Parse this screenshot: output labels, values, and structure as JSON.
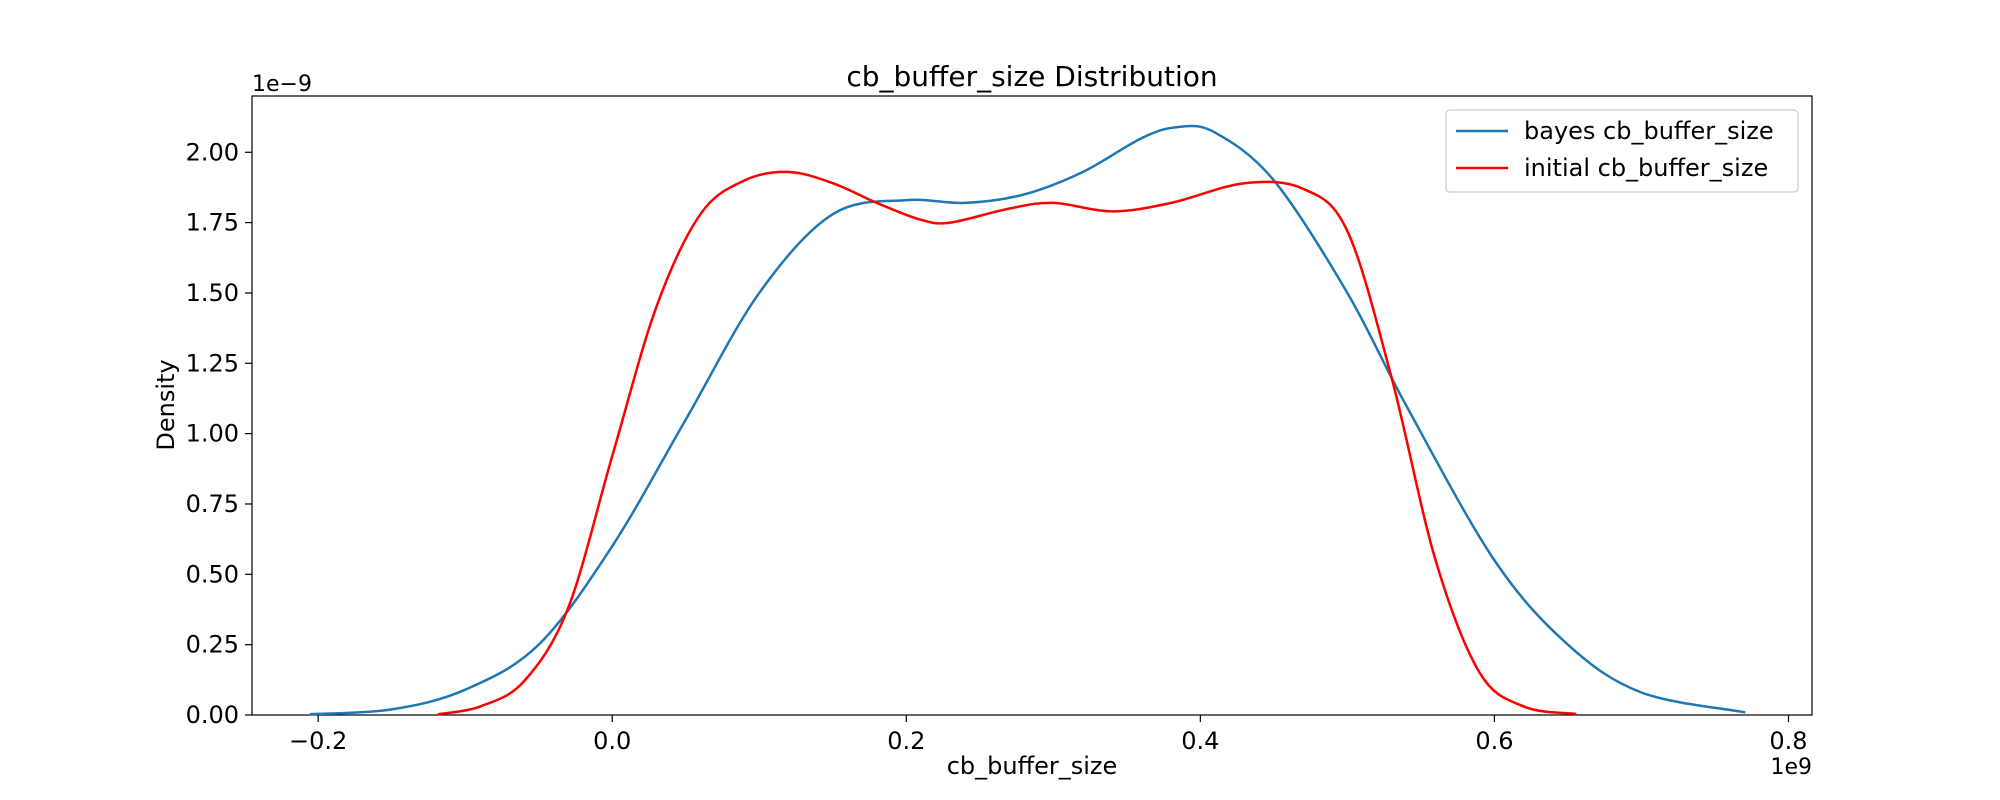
{
  "chart_data": {
    "type": "line",
    "title": "cb_buffer_size Distribution",
    "xlabel": "cb_buffer_size",
    "ylabel": "Density",
    "x_offset_text": "1e9",
    "y_offset_text": "1e−9",
    "xlim": [
      -0.245,
      0.816
    ],
    "ylim": [
      0,
      2.2
    ],
    "xticks": [
      -0.2,
      0.0,
      0.2,
      0.4,
      0.6,
      0.8
    ],
    "xtick_labels": [
      "−0.2",
      "0.0",
      "0.2",
      "0.4",
      "0.6",
      "0.8"
    ],
    "yticks": [
      0,
      0.25,
      0.5,
      0.75,
      1.0,
      1.25,
      1.5,
      1.75,
      2.0
    ],
    "ytick_labels": [
      "0.00",
      "0.25",
      "0.50",
      "0.75",
      "1.00",
      "1.25",
      "1.50",
      "1.75",
      "2.00"
    ],
    "grid": false,
    "legend_position": "top-right",
    "series": [
      {
        "name": "bayes cb_buffer_size",
        "color": "#1f77b4",
        "points": [
          [
            -0.205,
            0.003
          ],
          [
            -0.15,
            0.02
          ],
          [
            -0.1,
            0.09
          ],
          [
            -0.05,
            0.25
          ],
          [
            0.0,
            0.6
          ],
          [
            0.05,
            1.05
          ],
          [
            0.1,
            1.5
          ],
          [
            0.15,
            1.78
          ],
          [
            0.2,
            1.83
          ],
          [
            0.24,
            1.82
          ],
          [
            0.28,
            1.85
          ],
          [
            0.32,
            1.93
          ],
          [
            0.36,
            2.05
          ],
          [
            0.385,
            2.09
          ],
          [
            0.41,
            2.07
          ],
          [
            0.45,
            1.9
          ],
          [
            0.5,
            1.5
          ],
          [
            0.54,
            1.1
          ],
          [
            0.6,
            0.55
          ],
          [
            0.65,
            0.25
          ],
          [
            0.7,
            0.08
          ],
          [
            0.77,
            0.01
          ]
        ]
      },
      {
        "name": "initial cb_buffer_size",
        "color": "#ff0000",
        "points": [
          [
            -0.118,
            0.003
          ],
          [
            -0.09,
            0.03
          ],
          [
            -0.06,
            0.12
          ],
          [
            -0.03,
            0.38
          ],
          [
            0.0,
            0.92
          ],
          [
            0.03,
            1.45
          ],
          [
            0.06,
            1.78
          ],
          [
            0.09,
            1.9
          ],
          [
            0.12,
            1.93
          ],
          [
            0.15,
            1.89
          ],
          [
            0.18,
            1.82
          ],
          [
            0.21,
            1.76
          ],
          [
            0.23,
            1.75
          ],
          [
            0.27,
            1.8
          ],
          [
            0.3,
            1.82
          ],
          [
            0.34,
            1.79
          ],
          [
            0.38,
            1.82
          ],
          [
            0.43,
            1.89
          ],
          [
            0.47,
            1.87
          ],
          [
            0.5,
            1.72
          ],
          [
            0.53,
            1.2
          ],
          [
            0.56,
            0.55
          ],
          [
            0.59,
            0.15
          ],
          [
            0.62,
            0.03
          ],
          [
            0.655,
            0.004
          ]
        ]
      }
    ]
  }
}
